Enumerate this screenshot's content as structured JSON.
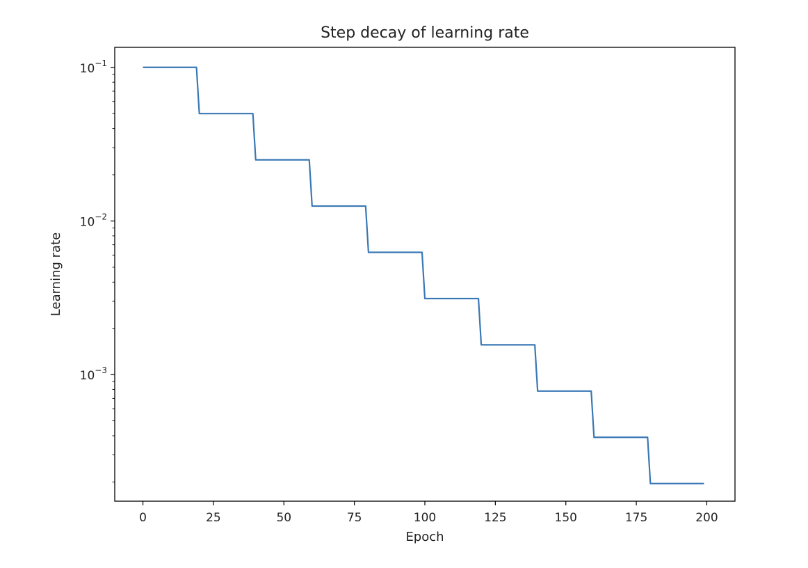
{
  "chart_data": {
    "type": "line",
    "title": "Step decay of learning rate",
    "xlabel": "Epoch",
    "ylabel": "Learning rate",
    "xlim": [
      -10,
      210
    ],
    "ylim": [
      0.00015,
      0.135
    ],
    "yscale": "log",
    "grid": false,
    "xticks": [
      0,
      25,
      50,
      75,
      100,
      125,
      150,
      175,
      200
    ],
    "xtick_labels": [
      "0",
      "25",
      "50",
      "75",
      "100",
      "125",
      "150",
      "175",
      "200"
    ],
    "yticks": [
      0.1,
      0.01,
      0.001
    ],
    "ytick_labels": [
      {
        "base": "10",
        "exp": "−1"
      },
      {
        "base": "10",
        "exp": "−2"
      },
      {
        "base": "10",
        "exp": "−3"
      }
    ],
    "series": [
      {
        "color": "#3a78b5",
        "x": [
          0,
          19,
          20,
          39,
          40,
          59,
          60,
          79,
          80,
          99,
          100,
          119,
          120,
          139,
          140,
          159,
          160,
          179,
          180,
          199
        ],
        "y": [
          0.1,
          0.1,
          0.05,
          0.05,
          0.025,
          0.025,
          0.0125,
          0.0125,
          0.00625,
          0.00625,
          0.003125,
          0.003125,
          0.0015625,
          0.0015625,
          0.00078125,
          0.00078125,
          0.000390625,
          0.000390625,
          0.0001953125,
          0.0001953125
        ]
      }
    ]
  }
}
